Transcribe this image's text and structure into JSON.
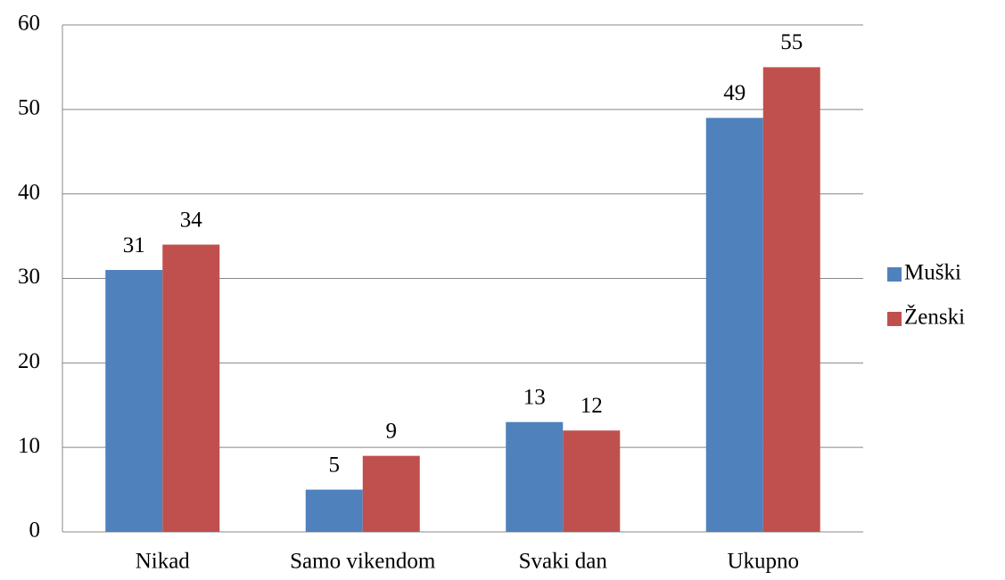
{
  "chart_data": {
    "type": "bar",
    "categories": [
      "Nikad",
      "Samo vikendom",
      "Svaki dan",
      "Ukupno"
    ],
    "series": [
      {
        "name": "Muški",
        "color": "#4f81bd",
        "values": [
          31,
          5,
          13,
          49
        ]
      },
      {
        "name": "Ženski",
        "color": "#c0504d",
        "values": [
          34,
          9,
          12,
          55
        ]
      }
    ],
    "ylim": [
      0,
      60
    ],
    "yticks": [
      0,
      10,
      20,
      30,
      40,
      50,
      60
    ],
    "grid": true,
    "legend": "right"
  }
}
